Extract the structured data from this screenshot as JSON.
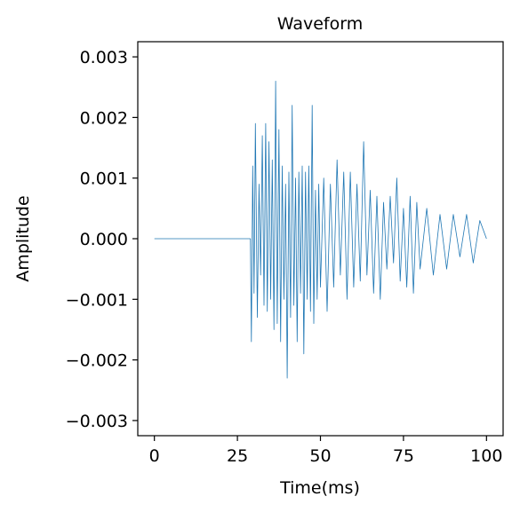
{
  "chart_data": {
    "type": "line",
    "title": "Waveform",
    "xlabel": "Time(ms)",
    "ylabel": "Amplitude",
    "xlim": [
      -5,
      105
    ],
    "ylim": [
      -0.00325,
      0.00325
    ],
    "x_ticks": [
      0,
      25,
      50,
      75,
      100
    ],
    "x_tick_labels": [
      "0",
      "25",
      "50",
      "75",
      "100"
    ],
    "y_ticks": [
      0.003,
      0.002,
      0.001,
      0.0,
      -0.001,
      -0.002,
      -0.003
    ],
    "y_tick_labels": [
      "0.003",
      "0.002",
      "0.001",
      "0.000",
      "−0.001",
      "−0.002",
      "−0.003"
    ],
    "grid": false,
    "legend": "none",
    "line_color": "#1f77b4",
    "series": [
      {
        "x": [
          0,
          28.9,
          29.2,
          29.6,
          30.0,
          30.4,
          31.0,
          31.5,
          32.0,
          32.5,
          33.0,
          33.5,
          34.0,
          34.5,
          35.0,
          35.5,
          36.0,
          36.5,
          37.0,
          37.5,
          38.0,
          38.5,
          39.0,
          39.5,
          40.0,
          40.5,
          41.0,
          41.5,
          42.0,
          42.5,
          43.0,
          43.5,
          44.0,
          44.5,
          45.0,
          45.5,
          46.0,
          46.5,
          47.0,
          47.5,
          48.0,
          48.5,
          49.0,
          49.5,
          50.0,
          51.0,
          52.0,
          53.0,
          54.0,
          55.0,
          56.0,
          57.0,
          58.0,
          59.0,
          60.0,
          61.0,
          62.0,
          63.0,
          64.0,
          65.0,
          66.0,
          67.0,
          68.0,
          69.0,
          70.0,
          71.0,
          72.0,
          73.0,
          74.0,
          75.0,
          76.0,
          77.0,
          78.0,
          79.0,
          80.0,
          82.0,
          84.0,
          86.0,
          88.0,
          90.0,
          92.0,
          94.0,
          96.0,
          98.0,
          100.0
        ],
        "y": [
          0,
          0,
          -0.0017,
          0.0012,
          -0.0009,
          0.0019,
          -0.0013,
          0.0009,
          -0.0006,
          0.0017,
          -0.0011,
          0.0019,
          -0.0012,
          0.0016,
          -0.001,
          0.0013,
          -0.0015,
          0.0026,
          -0.0014,
          0.0018,
          -0.0017,
          0.0012,
          -0.001,
          0.0009,
          -0.0023,
          0.0011,
          -0.0013,
          0.0022,
          -0.0011,
          0.001,
          -0.0017,
          0.0011,
          -0.0009,
          0.0012,
          -0.0019,
          0.0011,
          -0.001,
          0.0012,
          -0.0012,
          0.0022,
          -0.0014,
          0.0008,
          -0.001,
          0.0009,
          -0.0008,
          0.001,
          -0.0012,
          0.0009,
          -0.0008,
          0.0013,
          -0.0006,
          0.0011,
          -0.001,
          0.0011,
          -0.0008,
          0.0009,
          -0.0007,
          0.0016,
          -0.0006,
          0.0008,
          -0.0009,
          0.0007,
          -0.001,
          0.0006,
          -0.0005,
          0.0007,
          -0.0004,
          0.001,
          -0.0007,
          0.0005,
          -0.0008,
          0.0007,
          -0.0009,
          0.0006,
          -0.0005,
          0.0005,
          -0.0006,
          0.0004,
          -0.0005,
          0.0004,
          -0.0003,
          0.0004,
          -0.0004,
          0.0003,
          0
        ]
      }
    ]
  }
}
